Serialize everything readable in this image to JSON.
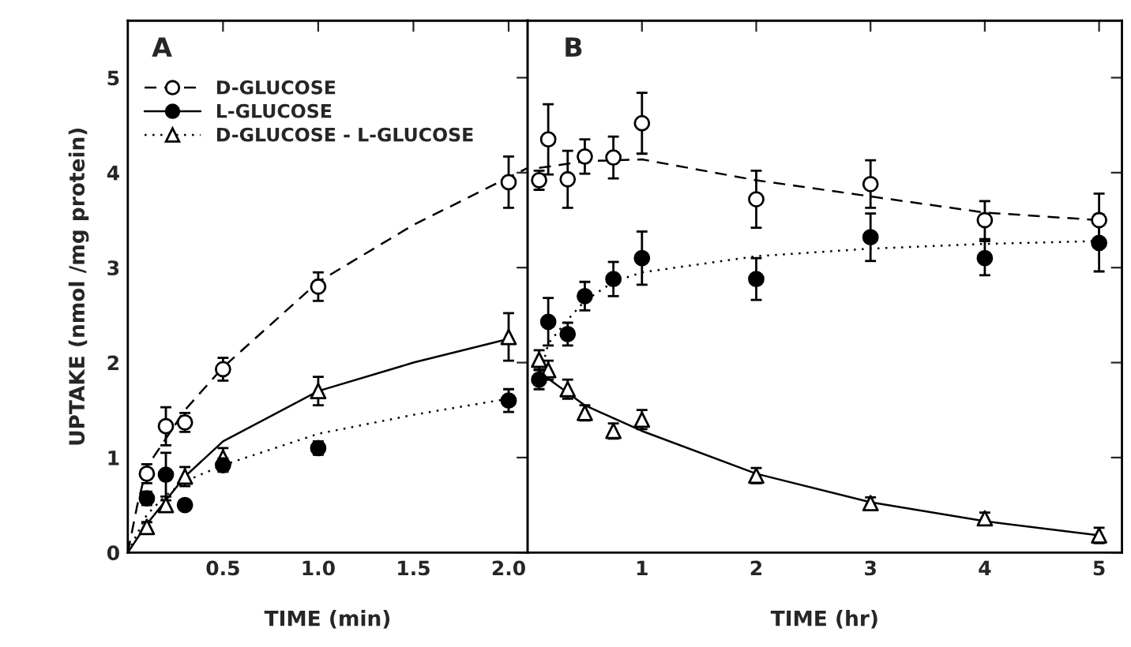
{
  "chart_data": [
    {
      "type": "scatter",
      "xlabel": "TIME (min)",
      "ylabel": "UPTAKE (nmol /mg protein)",
      "annotations": [
        "A"
      ],
      "xlim": [
        0,
        2.1
      ],
      "xticks": [
        0.5,
        {
          "value": 1.0,
          "label": "1.0"
        },
        1.5,
        {
          "value": 2.0,
          "label": "2.0"
        }
      ],
      "ylim": [
        0,
        5.6
      ],
      "yticks": [
        0,
        1,
        2,
        3,
        4,
        5
      ],
      "legend": "top left",
      "grid": false,
      "series": [
        {
          "name": "D-GLUCOSE",
          "marker": "circle",
          "line_style": "dashed",
          "color": "#ffffff",
          "x": [
            0.1,
            0.2,
            0.3,
            0.5,
            1.0,
            2.0
          ],
          "values": [
            0.83,
            1.33,
            1.37,
            1.93,
            2.8,
            3.9
          ],
          "errors": [
            0.1,
            0.2,
            0.1,
            0.12,
            0.15,
            0.27
          ]
        },
        {
          "name": "L-GLUCOSE",
          "marker": "circle",
          "line_style": "solid",
          "color": "#000000",
          "x": [
            0.1,
            0.2,
            0.3,
            0.5,
            1.0,
            2.0
          ],
          "values": [
            0.57,
            0.82,
            0.5,
            0.92,
            1.1,
            1.6
          ],
          "errors": [
            0.07,
            0.23,
            0.05,
            0.07,
            0.07,
            0.12
          ]
        },
        {
          "name": "D-GLUCOSE - L-GLUCOSE",
          "marker": "triangle",
          "line_style": "dotted",
          "color": "#ffffff",
          "x": [
            0.1,
            0.2,
            0.3,
            0.5,
            1.0,
            2.0
          ],
          "values": [
            0.27,
            0.5,
            0.8,
            1.0,
            1.7,
            2.27
          ],
          "errors": [
            0.05,
            0.05,
            0.1,
            0.1,
            0.15,
            0.25
          ]
        },
        {
          "type": "line",
          "line_style": "dashed",
          "color": "#000000",
          "x": [
            0,
            0.05,
            0.1,
            0.2,
            0.3,
            0.5,
            1.0,
            1.5,
            2.0,
            2.1
          ],
          "values": [
            0,
            0.5,
            0.9,
            1.2,
            1.5,
            1.95,
            2.85,
            3.45,
            3.95,
            4.05
          ]
        },
        {
          "type": "line",
          "line_style": "dotted",
          "color": "#000000",
          "x": [
            0,
            0.1,
            0.2,
            0.3,
            0.5,
            1.0,
            1.5,
            2.0
          ],
          "values": [
            0,
            0.4,
            0.6,
            0.75,
            0.92,
            1.25,
            1.45,
            1.62
          ]
        },
        {
          "type": "line",
          "line_style": "solid",
          "color": "#000000",
          "x": [
            0,
            0.1,
            0.2,
            0.3,
            0.5,
            1.0,
            1.5,
            2.0
          ],
          "values": [
            0,
            0.3,
            0.55,
            0.8,
            1.17,
            1.7,
            2.0,
            2.25
          ]
        }
      ]
    },
    {
      "type": "scatter",
      "xlabel": "TIME (hr)",
      "annotations": [
        "B"
      ],
      "xlim": [
        0,
        5.2
      ],
      "xticks": [
        1,
        2,
        3,
        4,
        5
      ],
      "ylim": [
        0,
        5.6
      ],
      "yticks": [
        0,
        1,
        2,
        3,
        4,
        5
      ],
      "tick_labels": "x",
      "grid": false,
      "series": [
        {
          "marker": "circle",
          "color": "#ffffff",
          "x": [
            0.1,
            0.18,
            0.35,
            0.5,
            0.75,
            1.0,
            2.0,
            3.0,
            4.0,
            5.0
          ],
          "values": [
            3.92,
            4.35,
            3.93,
            4.17,
            4.16,
            4.52,
            3.72,
            3.88,
            3.5,
            3.5
          ],
          "errors": [
            0.1,
            0.37,
            0.3,
            0.18,
            0.22,
            0.32,
            0.3,
            0.25,
            0.2,
            0.28
          ]
        },
        {
          "marker": "circle",
          "color": "#000000",
          "x": [
            0.1,
            0.18,
            0.35,
            0.5,
            0.75,
            1.0,
            2.0,
            3.0,
            4.0,
            5.0
          ],
          "values": [
            1.82,
            2.43,
            2.3,
            2.7,
            2.88,
            3.1,
            2.88,
            3.32,
            3.1,
            3.26
          ],
          "errors": [
            0.1,
            0.25,
            0.12,
            0.15,
            0.18,
            0.28,
            0.22,
            0.25,
            0.18,
            0.3
          ]
        },
        {
          "marker": "triangle",
          "color": "#ffffff",
          "x": [
            0.1,
            0.18,
            0.35,
            0.5,
            0.75,
            1.0,
            2.0,
            3.0,
            4.0,
            5.0
          ],
          "values": [
            2.03,
            1.92,
            1.72,
            1.47,
            1.28,
            1.4,
            0.81,
            0.52,
            0.36,
            0.18
          ],
          "errors": [
            0.1,
            0.1,
            0.1,
            0.08,
            0.08,
            0.1,
            0.08,
            0.06,
            0.06,
            0.08
          ]
        },
        {
          "type": "line",
          "line_style": "dashed",
          "color": "#000000",
          "x": [
            0.1,
            0.5,
            1.0,
            2.0,
            3.0,
            4.0,
            5.0
          ],
          "values": [
            4.05,
            4.12,
            4.14,
            3.92,
            3.75,
            3.58,
            3.5
          ]
        },
        {
          "type": "line",
          "line_style": "dotted",
          "color": "#000000",
          "x": [
            0.1,
            0.18,
            0.35,
            0.5,
            0.75,
            1.0,
            2.0,
            3.0,
            4.0,
            5.0
          ],
          "values": [
            1.82,
            2.2,
            2.45,
            2.65,
            2.85,
            2.95,
            3.12,
            3.2,
            3.25,
            3.28
          ]
        },
        {
          "type": "line",
          "line_style": "solid",
          "color": "#000000",
          "x": [
            0.1,
            0.5,
            1.0,
            2.0,
            3.0,
            4.0,
            5.0
          ],
          "values": [
            1.9,
            1.55,
            1.28,
            0.83,
            0.53,
            0.33,
            0.18
          ]
        }
      ]
    }
  ]
}
